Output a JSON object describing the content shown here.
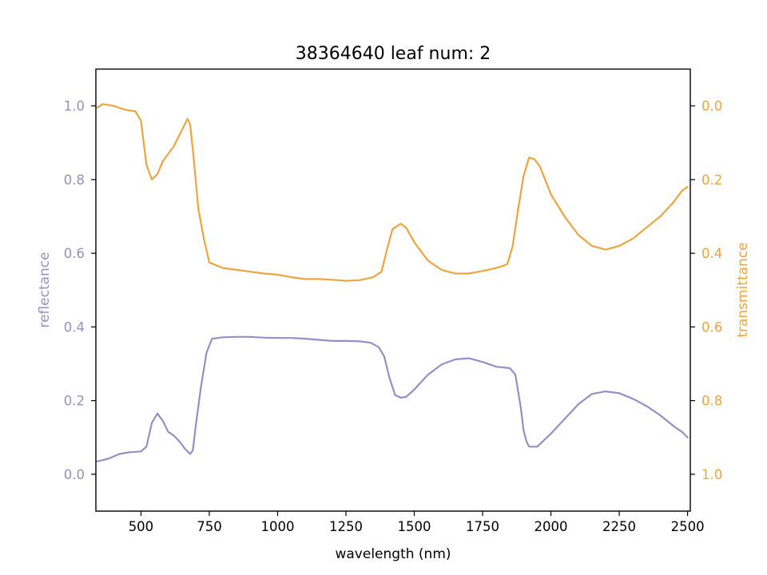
{
  "colors": {
    "reflectance": "#9590c4",
    "transmittance": "#eea43f",
    "axis": "#000000"
  },
  "chart_data": {
    "type": "line",
    "title": "38364640 leaf num: 2",
    "xlabel": "wavelength (nm)",
    "ylabel_left": "reflectance",
    "ylabel_right": "transmittance",
    "xlim": [
      335,
      2510
    ],
    "ylim_left": [
      -0.1,
      1.1
    ],
    "ylim_right": [
      1.1,
      -0.1
    ],
    "right_axis_inverted": true,
    "grid": false,
    "legend": "none",
    "x_ticks": [
      500,
      750,
      1000,
      1250,
      1500,
      1750,
      2000,
      2250,
      2500
    ],
    "x_tick_labels": [
      "500",
      "750",
      "1000",
      "1250",
      "1500",
      "1750",
      "2000",
      "2250",
      "2500"
    ],
    "y_left_ticks": [
      0.0,
      0.2,
      0.4,
      0.6,
      0.8,
      1.0
    ],
    "y_left_tick_labels": [
      "0.0",
      "0.2",
      "0.4",
      "0.6",
      "0.8",
      "1.0"
    ],
    "y_right_ticks": [
      0.0,
      0.2,
      0.4,
      0.6,
      0.8,
      1.0
    ],
    "y_right_tick_labels": [
      "0.0",
      "0.2",
      "0.4",
      "0.6",
      "0.8",
      "1.0"
    ],
    "series": [
      {
        "axis": "left",
        "color_key": "reflectance",
        "points": [
          [
            340,
            0.035
          ],
          [
            380,
            0.042
          ],
          [
            420,
            0.055
          ],
          [
            460,
            0.06
          ],
          [
            500,
            0.062
          ],
          [
            520,
            0.075
          ],
          [
            540,
            0.14
          ],
          [
            560,
            0.165
          ],
          [
            580,
            0.145
          ],
          [
            600,
            0.115
          ],
          [
            620,
            0.105
          ],
          [
            640,
            0.09
          ],
          [
            660,
            0.07
          ],
          [
            680,
            0.055
          ],
          [
            690,
            0.065
          ],
          [
            700,
            0.13
          ],
          [
            720,
            0.24
          ],
          [
            740,
            0.33
          ],
          [
            760,
            0.368
          ],
          [
            800,
            0.372
          ],
          [
            850,
            0.373
          ],
          [
            900,
            0.373
          ],
          [
            950,
            0.371
          ],
          [
            1000,
            0.37
          ],
          [
            1050,
            0.37
          ],
          [
            1100,
            0.368
          ],
          [
            1150,
            0.365
          ],
          [
            1200,
            0.362
          ],
          [
            1250,
            0.362
          ],
          [
            1300,
            0.361
          ],
          [
            1340,
            0.357
          ],
          [
            1370,
            0.345
          ],
          [
            1390,
            0.32
          ],
          [
            1410,
            0.26
          ],
          [
            1430,
            0.215
          ],
          [
            1450,
            0.208
          ],
          [
            1470,
            0.21
          ],
          [
            1500,
            0.23
          ],
          [
            1550,
            0.27
          ],
          [
            1600,
            0.298
          ],
          [
            1650,
            0.312
          ],
          [
            1700,
            0.315
          ],
          [
            1750,
            0.305
          ],
          [
            1800,
            0.292
          ],
          [
            1850,
            0.288
          ],
          [
            1870,
            0.27
          ],
          [
            1890,
            0.18
          ],
          [
            1900,
            0.12
          ],
          [
            1910,
            0.09
          ],
          [
            1920,
            0.075
          ],
          [
            1950,
            0.075
          ],
          [
            2000,
            0.11
          ],
          [
            2050,
            0.15
          ],
          [
            2100,
            0.19
          ],
          [
            2150,
            0.218
          ],
          [
            2200,
            0.225
          ],
          [
            2250,
            0.22
          ],
          [
            2300,
            0.205
          ],
          [
            2350,
            0.185
          ],
          [
            2400,
            0.16
          ],
          [
            2450,
            0.13
          ],
          [
            2480,
            0.115
          ],
          [
            2500,
            0.1
          ]
        ]
      },
      {
        "axis": "right",
        "color_key": "transmittance",
        "points": [
          [
            340,
            0.005
          ],
          [
            360,
            -0.005
          ],
          [
            400,
            0.0
          ],
          [
            440,
            0.01
          ],
          [
            480,
            0.015
          ],
          [
            500,
            0.04
          ],
          [
            520,
            0.16
          ],
          [
            540,
            0.2
          ],
          [
            560,
            0.185
          ],
          [
            580,
            0.15
          ],
          [
            600,
            0.13
          ],
          [
            620,
            0.11
          ],
          [
            640,
            0.08
          ],
          [
            660,
            0.05
          ],
          [
            670,
            0.035
          ],
          [
            680,
            0.05
          ],
          [
            690,
            0.12
          ],
          [
            710,
            0.28
          ],
          [
            730,
            0.36
          ],
          [
            750,
            0.425
          ],
          [
            800,
            0.44
          ],
          [
            850,
            0.445
          ],
          [
            900,
            0.45
          ],
          [
            950,
            0.455
          ],
          [
            1000,
            0.458
          ],
          [
            1050,
            0.465
          ],
          [
            1100,
            0.47
          ],
          [
            1150,
            0.47
          ],
          [
            1200,
            0.472
          ],
          [
            1250,
            0.475
          ],
          [
            1300,
            0.473
          ],
          [
            1350,
            0.465
          ],
          [
            1380,
            0.45
          ],
          [
            1400,
            0.39
          ],
          [
            1420,
            0.335
          ],
          [
            1450,
            0.32
          ],
          [
            1470,
            0.33
          ],
          [
            1500,
            0.37
          ],
          [
            1550,
            0.42
          ],
          [
            1600,
            0.445
          ],
          [
            1650,
            0.455
          ],
          [
            1700,
            0.455
          ],
          [
            1750,
            0.448
          ],
          [
            1800,
            0.44
          ],
          [
            1840,
            0.43
          ],
          [
            1860,
            0.38
          ],
          [
            1880,
            0.28
          ],
          [
            1900,
            0.19
          ],
          [
            1920,
            0.14
          ],
          [
            1940,
            0.145
          ],
          [
            1960,
            0.165
          ],
          [
            2000,
            0.24
          ],
          [
            2050,
            0.3
          ],
          [
            2100,
            0.35
          ],
          [
            2150,
            0.38
          ],
          [
            2200,
            0.39
          ],
          [
            2250,
            0.38
          ],
          [
            2300,
            0.36
          ],
          [
            2350,
            0.33
          ],
          [
            2400,
            0.3
          ],
          [
            2450,
            0.26
          ],
          [
            2480,
            0.23
          ],
          [
            2500,
            0.22
          ]
        ]
      }
    ]
  }
}
